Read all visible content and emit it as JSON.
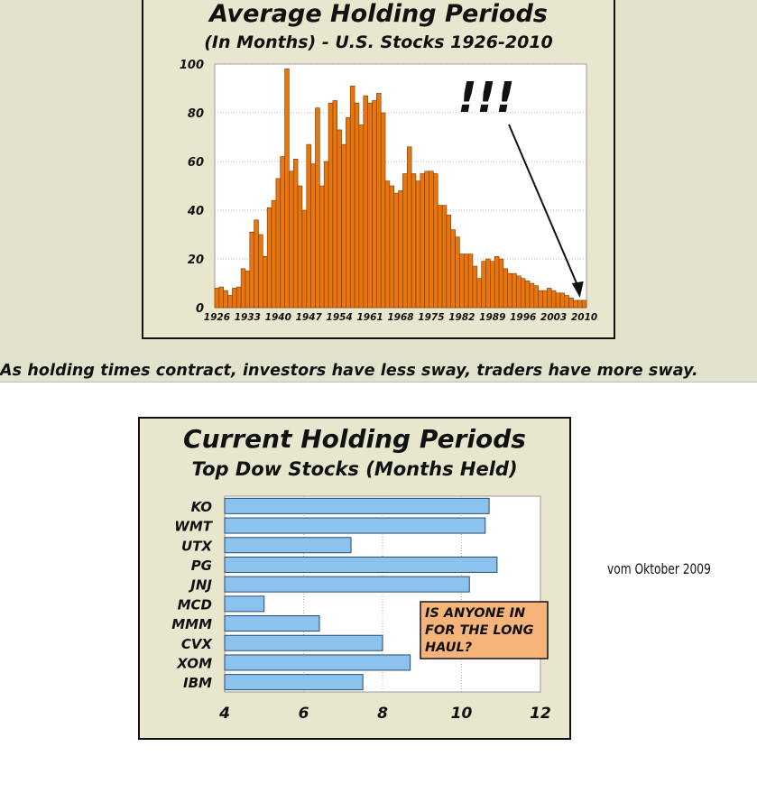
{
  "chart_data": [
    {
      "type": "bar",
      "title": "Average Holding Periods",
      "subtitle": "(In Months) - U.S. Stocks 1926-2010",
      "annotation": "!!!",
      "xlabel": "",
      "ylabel": "",
      "ylim": [
        0,
        100
      ],
      "yticks": [
        "0",
        "20",
        "40",
        "60",
        "80",
        "100"
      ],
      "xtick_labels": [
        "1926",
        "1933",
        "1940",
        "1947",
        "1954",
        "1961",
        "1968",
        "1975",
        "1982",
        "1989",
        "1996",
        "2003",
        "2010"
      ],
      "categories": [
        1926,
        1927,
        1928,
        1929,
        1930,
        1931,
        1932,
        1933,
        1934,
        1935,
        1936,
        1937,
        1938,
        1939,
        1940,
        1941,
        1942,
        1943,
        1944,
        1945,
        1946,
        1947,
        1948,
        1949,
        1950,
        1951,
        1952,
        1953,
        1954,
        1955,
        1956,
        1957,
        1958,
        1959,
        1960,
        1961,
        1962,
        1963,
        1964,
        1965,
        1966,
        1967,
        1968,
        1969,
        1970,
        1971,
        1972,
        1973,
        1974,
        1975,
        1976,
        1977,
        1978,
        1979,
        1980,
        1981,
        1982,
        1983,
        1984,
        1985,
        1986,
        1987,
        1988,
        1989,
        1990,
        1991,
        1992,
        1993,
        1994,
        1995,
        1996,
        1997,
        1998,
        1999,
        2000,
        2001,
        2002,
        2003,
        2004,
        2005,
        2006,
        2007,
        2008,
        2009,
        2010
      ],
      "values": [
        8,
        8.5,
        7,
        5,
        8,
        8.5,
        16,
        15,
        31,
        36,
        30,
        21,
        41,
        44,
        53,
        62,
        98,
        56,
        61,
        50,
        40,
        67,
        59,
        82,
        50,
        60,
        84,
        85,
        73,
        67,
        78,
        91,
        84,
        75,
        87,
        84,
        85,
        88,
        80,
        52,
        50,
        47,
        48,
        55,
        66,
        55,
        52,
        55,
        56,
        56,
        55,
        42,
        42,
        38,
        32,
        29,
        22,
        22,
        22,
        17,
        12,
        19,
        20,
        19,
        21,
        20,
        16,
        14,
        14,
        13,
        12,
        11,
        10,
        9,
        7,
        7,
        8,
        7,
        6,
        6,
        5,
        4,
        3,
        3,
        3
      ]
    },
    {
      "type": "bar",
      "orientation": "horizontal",
      "title": "Current Holding Periods",
      "subtitle": "Top Dow Stocks (Months Held)",
      "xlim": [
        4,
        12
      ],
      "xticks": [
        "4",
        "6",
        "8",
        "10",
        "12"
      ],
      "categories": [
        "KO",
        "WMT",
        "UTX",
        "PG",
        "JNJ",
        "MCD",
        "MMM",
        "CVX",
        "XOM",
        "IBM"
      ],
      "values": [
        10.7,
        10.6,
        7.2,
        10.9,
        10.2,
        5.0,
        6.4,
        8.0,
        8.7,
        7.5
      ],
      "callout_lines": [
        "IS ANYONE IN",
        "FOR THE LONG",
        "HAUL?"
      ]
    }
  ],
  "caption": "As holding times contract, investors have less sway, traders have more sway.",
  "side_note": "vom Oktober 2009",
  "colors": {
    "bar1": "#e8760e",
    "bar2": "#8cc2ee",
    "callout": "#f7b47a",
    "panel": "#e8e6cd"
  }
}
